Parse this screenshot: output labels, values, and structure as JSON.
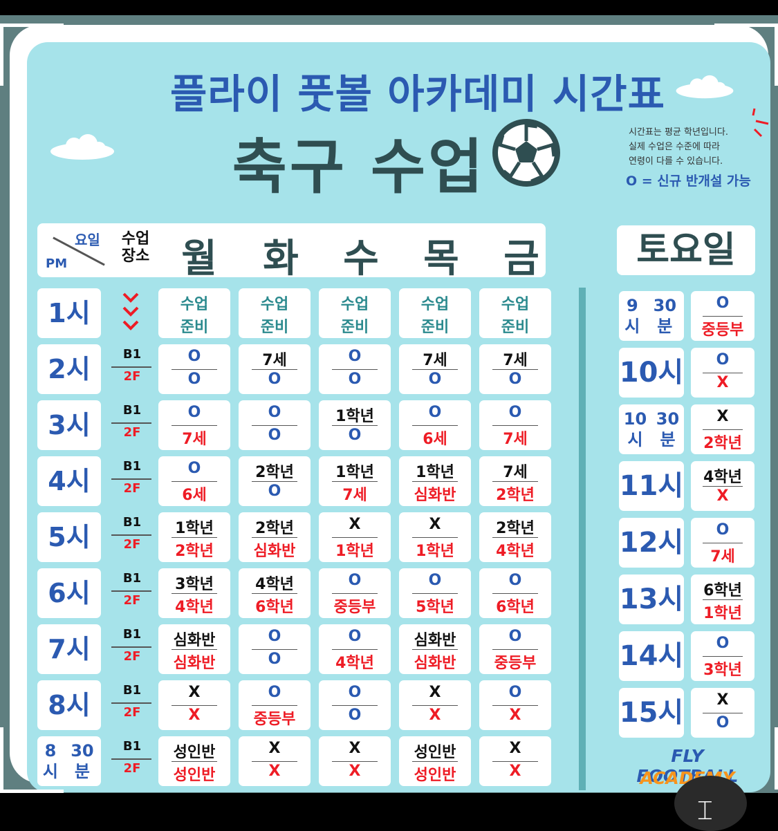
{
  "title": "플라이 풋볼 아카데미 시간표",
  "subtitle": "축구 수업",
  "note": {
    "line1": "시간표는 평균 학년입니다.",
    "line2": "실제 수업은 수준에 따라",
    "line3": "연령이 다를 수 있습니다.",
    "key": "O = 신규 반개설 가능"
  },
  "header": {
    "corner_day": "요일",
    "corner_pm": "PM",
    "location_label_1": "수업",
    "location_label_2": "장소",
    "days": [
      "월",
      "화",
      "수",
      "목",
      "금"
    ],
    "saturday": "토요일"
  },
  "location": {
    "top": "B1",
    "bottom": "2F"
  },
  "weekday_rows": [
    {
      "time": "1시",
      "slots": [
        [
          "수업",
          "준비"
        ],
        [
          "수업",
          "준비"
        ],
        [
          "수업",
          "준비"
        ],
        [
          "수업",
          "준비"
        ],
        [
          "수업",
          "준비"
        ]
      ]
    },
    {
      "time": "2시",
      "slots": [
        [
          "O",
          "O"
        ],
        [
          "7세",
          "O"
        ],
        [
          "O",
          "O"
        ],
        [
          "7세",
          "O"
        ],
        [
          "7세",
          "O"
        ]
      ]
    },
    {
      "time": "3시",
      "slots": [
        [
          "O",
          "7세"
        ],
        [
          "O",
          "O"
        ],
        [
          "1학년",
          "O"
        ],
        [
          "O",
          "6세"
        ],
        [
          "O",
          "7세"
        ]
      ]
    },
    {
      "time": "4시",
      "slots": [
        [
          "O",
          "6세"
        ],
        [
          "2학년",
          "O"
        ],
        [
          "1학년",
          "7세"
        ],
        [
          "1학년",
          "심화반"
        ],
        [
          "7세",
          "2학년"
        ]
      ]
    },
    {
      "time": "5시",
      "slots": [
        [
          "1학년",
          "2학년"
        ],
        [
          "2학년",
          "심화반"
        ],
        [
          "X",
          "1학년"
        ],
        [
          "X",
          "1학년"
        ],
        [
          "2학년",
          "4학년"
        ]
      ]
    },
    {
      "time": "6시",
      "slots": [
        [
          "3학년",
          "4학년"
        ],
        [
          "4학년",
          "6학년"
        ],
        [
          "O",
          "중등부"
        ],
        [
          "O",
          "5학년"
        ],
        [
          "O",
          "6학년"
        ]
      ]
    },
    {
      "time": "7시",
      "slots": [
        [
          "심화반",
          "심화반"
        ],
        [
          "O",
          "O"
        ],
        [
          "O",
          "4학년"
        ],
        [
          "심화반",
          "심화반"
        ],
        [
          "O",
          "중등부"
        ]
      ]
    },
    {
      "time": "8시",
      "slots": [
        [
          "X",
          "X"
        ],
        [
          "O",
          "중등부"
        ],
        [
          "O",
          "O"
        ],
        [
          "X",
          "X"
        ],
        [
          "O",
          "X"
        ]
      ]
    },
    {
      "time": "8시\n30분",
      "slots": [
        [
          "성인반",
          "성인반"
        ],
        [
          "X",
          "X"
        ],
        [
          "X",
          "X"
        ],
        [
          "성인반",
          "성인반"
        ],
        [
          "X",
          "X"
        ]
      ]
    }
  ],
  "saturday_rows": [
    {
      "time": "9시\n30분",
      "slot": [
        "O",
        "중등부"
      ]
    },
    {
      "time": "10시",
      "slot": [
        "O",
        "X"
      ]
    },
    {
      "time": "10시\n30분",
      "slot": [
        "X",
        "2학년"
      ]
    },
    {
      "time": "11시",
      "slot": [
        "4학년",
        "X"
      ]
    },
    {
      "time": "12시",
      "slot": [
        "O",
        "7세"
      ]
    },
    {
      "time": "13시",
      "slot": [
        "6학년",
        "1학년"
      ]
    },
    {
      "time": "14시",
      "slot": [
        "O",
        "3학년"
      ]
    },
    {
      "time": "15시",
      "slot": [
        "X",
        "O"
      ]
    }
  ],
  "brand": {
    "line1": "FLY FOOTBALL",
    "line2": "ACADEMY"
  },
  "colors": {
    "background": "#a6e3ea",
    "title_blue": "#2b5ab1",
    "dark_teal": "#2f4e51",
    "red": "#ee1c25",
    "orange": "#f7941d"
  },
  "icons": [
    "soccer-ball-icon",
    "cloud-icon",
    "chevron-down-icon",
    "text-cursor-icon"
  ]
}
